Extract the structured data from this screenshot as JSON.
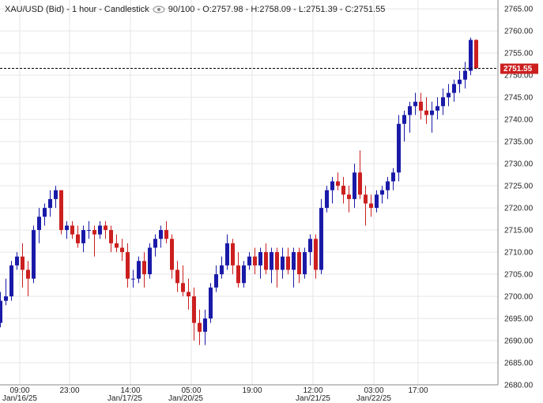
{
  "header": {
    "symbol": "XAU/USD (Bid) - 1 hour - Candlestick",
    "ohlc": "90/100 - O:2757.98 - H:2758.09 - L:2751.39 - C:2751.55"
  },
  "current_price_label": "2751.55",
  "colors": {
    "up": "#1a1aa8",
    "down": "#cc1f1f",
    "grid": "#e6e6e6",
    "price_line": "#000000",
    "price_label_bg": "#cc1f1f"
  },
  "chart_data": {
    "type": "candlestick",
    "ylim": [
      2680,
      2767
    ],
    "y_ticks": [
      "2680.00",
      "2685.00",
      "2690.00",
      "2695.00",
      "2700.00",
      "2705.00",
      "2710.00",
      "2715.00",
      "2720.00",
      "2725.00",
      "2730.00",
      "2735.00",
      "2740.00",
      "2745.00",
      "2750.00",
      "2755.00",
      "2760.00",
      "2765.00"
    ],
    "x_time_labels": [
      {
        "index": 3.5,
        "label": "09:00"
      },
      {
        "index": 12.5,
        "label": "23:00"
      },
      {
        "index": 23.5,
        "label": "14:00"
      },
      {
        "index": 34.5,
        "label": "05:00"
      },
      {
        "index": 45.5,
        "label": "19:00"
      },
      {
        "index": 56.5,
        "label": "12:00"
      },
      {
        "index": 67.5,
        "label": "03:00"
      },
      {
        "index": 75.5,
        "label": "17:00"
      }
    ],
    "x_date_labels": [
      {
        "index": 3.5,
        "label": "Jan/16/25"
      },
      {
        "index": 22.5,
        "label": "Jan/17/25"
      },
      {
        "index": 33.5,
        "label": "Jan/20/25"
      },
      {
        "index": 56.5,
        "label": "Jan/21/25"
      },
      {
        "index": 67.5,
        "label": "Jan/22/25"
      }
    ],
    "current_price": 2751.55,
    "candles": [
      {
        "o": 2694,
        "h": 2701,
        "l": 2693,
        "c": 2699
      },
      {
        "o": 2699,
        "h": 2704,
        "l": 2698,
        "c": 2700
      },
      {
        "o": 2700,
        "h": 2708,
        "l": 2699,
        "c": 2707
      },
      {
        "o": 2707,
        "h": 2710,
        "l": 2706,
        "c": 2709
      },
      {
        "o": 2709,
        "h": 2712,
        "l": 2702,
        "c": 2706
      },
      {
        "o": 2706,
        "h": 2708,
        "l": 2700,
        "c": 2704
      },
      {
        "o": 2704,
        "h": 2716,
        "l": 2703,
        "c": 2715
      },
      {
        "o": 2715,
        "h": 2720,
        "l": 2712,
        "c": 2718
      },
      {
        "o": 2718,
        "h": 2721,
        "l": 2716,
        "c": 2720
      },
      {
        "o": 2720,
        "h": 2724,
        "l": 2718,
        "c": 2722
      },
      {
        "o": 2722,
        "h": 2725,
        "l": 2720,
        "c": 2724
      },
      {
        "o": 2724,
        "h": 2724,
        "l": 2714,
        "c": 2715
      },
      {
        "o": 2715,
        "h": 2717,
        "l": 2713,
        "c": 2716
      },
      {
        "o": 2716,
        "h": 2717,
        "l": 2713,
        "c": 2714
      },
      {
        "o": 2714,
        "h": 2716,
        "l": 2711,
        "c": 2712
      },
      {
        "o": 2712,
        "h": 2716,
        "l": 2710,
        "c": 2715
      },
      {
        "o": 2715,
        "h": 2717,
        "l": 2713,
        "c": 2715
      },
      {
        "o": 2715,
        "h": 2716,
        "l": 2709,
        "c": 2714
      },
      {
        "o": 2714,
        "h": 2717,
        "l": 2713,
        "c": 2716
      },
      {
        "o": 2716,
        "h": 2717,
        "l": 2713,
        "c": 2715
      },
      {
        "o": 2715,
        "h": 2716,
        "l": 2710,
        "c": 2712
      },
      {
        "o": 2712,
        "h": 2714,
        "l": 2710,
        "c": 2711
      },
      {
        "o": 2711,
        "h": 2713,
        "l": 2708,
        "c": 2710
      },
      {
        "o": 2710,
        "h": 2712,
        "l": 2702,
        "c": 2704
      },
      {
        "o": 2704,
        "h": 2706,
        "l": 2702,
        "c": 2704
      },
      {
        "o": 2704,
        "h": 2709,
        "l": 2703,
        "c": 2708
      },
      {
        "o": 2708,
        "h": 2710,
        "l": 2702,
        "c": 2705
      },
      {
        "o": 2705,
        "h": 2712,
        "l": 2704,
        "c": 2711
      },
      {
        "o": 2711,
        "h": 2714,
        "l": 2709,
        "c": 2713
      },
      {
        "o": 2713,
        "h": 2716,
        "l": 2711,
        "c": 2715
      },
      {
        "o": 2715,
        "h": 2717,
        "l": 2712,
        "c": 2713
      },
      {
        "o": 2713,
        "h": 2714,
        "l": 2704,
        "c": 2706
      },
      {
        "o": 2706,
        "h": 2708,
        "l": 2701,
        "c": 2703
      },
      {
        "o": 2703,
        "h": 2707,
        "l": 2700,
        "c": 2701
      },
      {
        "o": 2701,
        "h": 2704,
        "l": 2697,
        "c": 2700
      },
      {
        "o": 2700,
        "h": 2702,
        "l": 2690,
        "c": 2694
      },
      {
        "o": 2694,
        "h": 2697,
        "l": 2689,
        "c": 2692
      },
      {
        "o": 2692,
        "h": 2697,
        "l": 2689,
        "c": 2695
      },
      {
        "o": 2695,
        "h": 2703,
        "l": 2694,
        "c": 2702
      },
      {
        "o": 2702,
        "h": 2707,
        "l": 2701,
        "c": 2705
      },
      {
        "o": 2705,
        "h": 2709,
        "l": 2704,
        "c": 2707
      },
      {
        "o": 2707,
        "h": 2714,
        "l": 2706,
        "c": 2712
      },
      {
        "o": 2712,
        "h": 2713,
        "l": 2705,
        "c": 2707
      },
      {
        "o": 2707,
        "h": 2710,
        "l": 2702,
        "c": 2703
      },
      {
        "o": 2703,
        "h": 2708,
        "l": 2702,
        "c": 2707
      },
      {
        "o": 2707,
        "h": 2710,
        "l": 2706,
        "c": 2709
      },
      {
        "o": 2709,
        "h": 2711,
        "l": 2705,
        "c": 2707
      },
      {
        "o": 2707,
        "h": 2711,
        "l": 2704,
        "c": 2710
      },
      {
        "o": 2710,
        "h": 2712,
        "l": 2705,
        "c": 2706
      },
      {
        "o": 2706,
        "h": 2711,
        "l": 2703,
        "c": 2710
      },
      {
        "o": 2710,
        "h": 2711,
        "l": 2702,
        "c": 2706
      },
      {
        "o": 2706,
        "h": 2711,
        "l": 2704,
        "c": 2709
      },
      {
        "o": 2709,
        "h": 2711,
        "l": 2705,
        "c": 2706
      },
      {
        "o": 2706,
        "h": 2711,
        "l": 2702,
        "c": 2710
      },
      {
        "o": 2710,
        "h": 2711,
        "l": 2703,
        "c": 2705
      },
      {
        "o": 2705,
        "h": 2711,
        "l": 2704,
        "c": 2710
      },
      {
        "o": 2710,
        "h": 2714,
        "l": 2707,
        "c": 2713
      },
      {
        "o": 2713,
        "h": 2714,
        "l": 2704,
        "c": 2706
      },
      {
        "o": 2706,
        "h": 2722,
        "l": 2705,
        "c": 2720
      },
      {
        "o": 2720,
        "h": 2725,
        "l": 2719,
        "c": 2724
      },
      {
        "o": 2724,
        "h": 2727,
        "l": 2721,
        "c": 2726
      },
      {
        "o": 2726,
        "h": 2728,
        "l": 2724,
        "c": 2725
      },
      {
        "o": 2725,
        "h": 2727,
        "l": 2721,
        "c": 2723
      },
      {
        "o": 2723,
        "h": 2725,
        "l": 2719,
        "c": 2722
      },
      {
        "o": 2722,
        "h": 2730,
        "l": 2720,
        "c": 2728
      },
      {
        "o": 2728,
        "h": 2733,
        "l": 2722,
        "c": 2723
      },
      {
        "o": 2723,
        "h": 2725,
        "l": 2716,
        "c": 2721
      },
      {
        "o": 2721,
        "h": 2723,
        "l": 2718,
        "c": 2720
      },
      {
        "o": 2720,
        "h": 2724,
        "l": 2719,
        "c": 2723
      },
      {
        "o": 2723,
        "h": 2725,
        "l": 2721,
        "c": 2724
      },
      {
        "o": 2724,
        "h": 2727,
        "l": 2722,
        "c": 2726
      },
      {
        "o": 2726,
        "h": 2729,
        "l": 2724,
        "c": 2728
      },
      {
        "o": 2728,
        "h": 2741,
        "l": 2726,
        "c": 2739
      },
      {
        "o": 2739,
        "h": 2742,
        "l": 2735,
        "c": 2741
      },
      {
        "o": 2741,
        "h": 2744,
        "l": 2737,
        "c": 2743
      },
      {
        "o": 2743,
        "h": 2746,
        "l": 2741,
        "c": 2744
      },
      {
        "o": 2744,
        "h": 2746,
        "l": 2740,
        "c": 2742
      },
      {
        "o": 2742,
        "h": 2745,
        "l": 2739,
        "c": 2741
      },
      {
        "o": 2741,
        "h": 2744,
        "l": 2737,
        "c": 2742
      },
      {
        "o": 2742,
        "h": 2745,
        "l": 2740,
        "c": 2743
      },
      {
        "o": 2743,
        "h": 2747,
        "l": 2741,
        "c": 2745
      },
      {
        "o": 2745,
        "h": 2748,
        "l": 2743,
        "c": 2746
      },
      {
        "o": 2746,
        "h": 2749,
        "l": 2744,
        "c": 2748
      },
      {
        "o": 2748,
        "h": 2751,
        "l": 2746,
        "c": 2749
      },
      {
        "o": 2749,
        "h": 2753,
        "l": 2747,
        "c": 2751
      },
      {
        "o": 2751,
        "h": 2758.5,
        "l": 2750,
        "c": 2757.98
      },
      {
        "o": 2757.98,
        "h": 2758.09,
        "l": 2751.39,
        "c": 2751.55
      }
    ]
  }
}
